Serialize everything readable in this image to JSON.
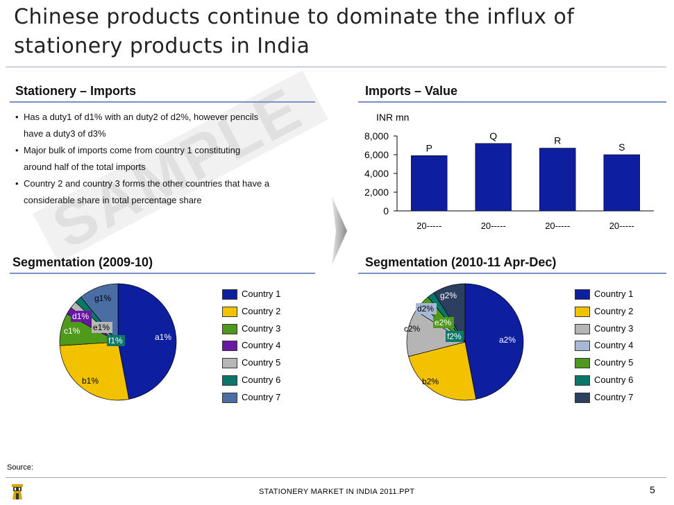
{
  "slide": {
    "title_line1": "Chinese products continue to dominate the influx of",
    "title_line2": "stationery products in India",
    "source_label": "Source:",
    "footer": "STATIONERY MARKET IN INDIA 2011.PPT",
    "page_number": "5",
    "watermark": "SAMPLE"
  },
  "imports_section": {
    "heading": "Stationery – Imports",
    "bullets": [
      {
        "line1": "Has a  duty1 of d1% with an duty2 of d2%, however pencils",
        "line2": "have a duty3 of d3%"
      },
      {
        "line1": "Major bulk of imports come from country 1 constituting",
        "line2": "around half of the total imports"
      },
      {
        "line1": "Country 2 and country 3 forms the other countries that have a",
        "line2": "considerable share in total percentage share"
      }
    ]
  },
  "colors": {
    "country1": "#0d1e9e",
    "country2": "#f2c200",
    "country3": "#4f9a1d",
    "country4": "#6b17a6",
    "country5": "#b7b7b7",
    "country6": "#0b7768",
    "country7": "#4a6ea4",
    "country3_b": "#b5b5b5",
    "country4_b": "#a7b7d6",
    "country5_b": "#4f9a1d",
    "country6_b": "#0b7768",
    "country7_b": "#2d3f60",
    "bar": "#0d1e9e"
  },
  "chart_data": [
    {
      "type": "bar",
      "title": "Imports – Value",
      "ylabel": "INR mn",
      "categories": [
        "20-----",
        "20-----",
        "20-----",
        "20-----"
      ],
      "values": [
        5900,
        7200,
        6700,
        6000
      ],
      "data_labels": [
        "P",
        "Q",
        "R",
        "S"
      ],
      "ylim": [
        0,
        8000
      ],
      "yticks": [
        0,
        2000,
        4000,
        6000,
        8000
      ],
      "ytick_labels": [
        "0",
        "2,000",
        "4,000",
        "6,000",
        "8,000"
      ]
    },
    {
      "type": "pie",
      "title": "Segmentation (2009-10)",
      "labels": [
        "Country 1",
        "Country 2",
        "Country 3",
        "Country 4",
        "Country 5",
        "Country 6",
        "Country 7"
      ],
      "slice_labels": [
        "a1%",
        "b1%",
        "c1%",
        "d1%",
        "e1%",
        "f1%",
        "g1%"
      ],
      "values": [
        47,
        27,
        9,
        2,
        2,
        2,
        11
      ]
    },
    {
      "type": "pie",
      "title": "Segmentation (2010-11 Apr-Dec)",
      "labels": [
        "Country 1",
        "Country 2",
        "Country 3",
        "Country 4",
        "Country 5",
        "Country 6",
        "Country 7"
      ],
      "slice_labels": [
        "a2%",
        "b2%",
        "c2%",
        "d2%",
        "e2%",
        "f2%",
        "g2%"
      ],
      "values": [
        47,
        24,
        13,
        2,
        3,
        2,
        9
      ]
    }
  ]
}
